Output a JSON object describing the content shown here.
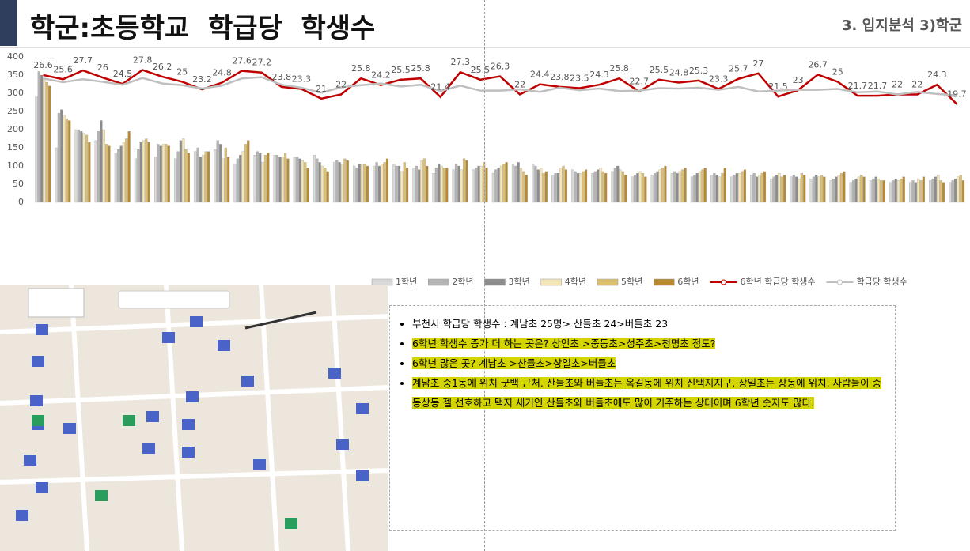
{
  "header": {
    "title": "학군:초등학교  학급당  학생수",
    "section": "3. 입지분석 3)학군"
  },
  "chart_data": {
    "type": "bar",
    "categories": [
      null,
      null,
      null,
      null,
      null,
      null,
      null,
      null,
      null,
      null,
      null,
      null,
      null,
      null,
      null,
      null,
      null,
      null,
      null,
      null,
      null,
      null,
      null,
      null,
      null,
      null,
      null,
      null,
      null,
      null,
      null,
      null,
      null,
      null,
      null,
      null,
      null,
      null,
      null,
      null,
      null,
      null,
      null,
      null,
      null,
      null,
      null
    ],
    "ylim": [
      0,
      400
    ],
    "yticks": [
      0,
      50,
      100,
      150,
      200,
      250,
      300,
      350,
      400
    ],
    "y2lim": [
      -3.6,
      30.9
    ],
    "series": [
      {
        "name": "1학년",
        "color": "#d9d9d9",
        "values": [
          290,
          150,
          200,
          170,
          135,
          120,
          125,
          120,
          140,
          145,
          105,
          130,
          130,
          125,
          130,
          110,
          100,
          100,
          105,
          95,
          80,
          90,
          90,
          80,
          105,
          105,
          75,
          90,
          80,
          85,
          70,
          75,
          80,
          70,
          75,
          70,
          75,
          65,
          70,
          65,
          60,
          55,
          60,
          55,
          55,
          60,
          55
        ]
      },
      {
        "name": "2학년",
        "color": "#b4b4b4",
        "values": [
          360,
          245,
          200,
          195,
          145,
          145,
          160,
          140,
          150,
          170,
          120,
          140,
          130,
          125,
          120,
          115,
          95,
          110,
          100,
          100,
          95,
          105,
          95,
          90,
          100,
          100,
          80,
          85,
          85,
          95,
          75,
          80,
          85,
          75,
          80,
          75,
          80,
          70,
          75,
          70,
          65,
          60,
          65,
          60,
          60,
          65,
          60
        ]
      },
      {
        "name": "3학년",
        "color": "#8c8c8c",
        "values": [
          350,
          255,
          195,
          225,
          155,
          165,
          155,
          170,
          125,
          160,
          130,
          135,
          125,
          120,
          110,
          110,
          105,
          100,
          100,
          90,
          105,
          100,
          100,
          95,
          110,
          90,
          80,
          80,
          90,
          100,
          80,
          85,
          80,
          80,
          75,
          80,
          70,
          75,
          70,
          75,
          70,
          65,
          70,
          65,
          55,
          70,
          65
        ]
      },
      {
        "name": "4학년",
        "color": "#f5e6b8",
        "values": [
          340,
          240,
          190,
          200,
          165,
          170,
          160,
          175,
          130,
          120,
          140,
          110,
          125,
          115,
          100,
          105,
          105,
          105,
          85,
          115,
          100,
          90,
          100,
          100,
          95,
          95,
          95,
          80,
          95,
          90,
          85,
          90,
          85,
          85,
          70,
          80,
          75,
          80,
          65,
          70,
          75,
          70,
          65,
          60,
          65,
          75,
          70
        ]
      },
      {
        "name": "5학년",
        "color": "#dcc070",
        "values": [
          330,
          230,
          185,
          160,
          175,
          175,
          160,
          145,
          140,
          150,
          160,
          130,
          135,
          110,
          95,
          120,
          105,
          110,
          110,
          120,
          95,
          120,
          110,
          105,
          85,
          80,
          100,
          85,
          85,
          85,
          80,
          95,
          90,
          90,
          80,
          85,
          80,
          70,
          80,
          75,
          80,
          75,
          60,
          65,
          60,
          60,
          75
        ]
      },
      {
        "name": "6학년",
        "color": "#b8892e",
        "values": [
          320,
          225,
          165,
          155,
          195,
          165,
          155,
          135,
          140,
          125,
          170,
          135,
          120,
          95,
          85,
          115,
          100,
          120,
          95,
          100,
          95,
          115,
          95,
          110,
          75,
          85,
          90,
          90,
          80,
          75,
          70,
          100,
          95,
          95,
          95,
          90,
          85,
          75,
          75,
          70,
          85,
          70,
          60,
          70,
          70,
          55,
          60
        ]
      },
      {
        "name": "6학년 학급당 학생수",
        "type": "line",
        "axis": "y2",
        "color": "#c00000",
        "values": [
          26.6,
          25.6,
          27.7,
          26,
          24.5,
          27.8,
          26.2,
          25,
          23.2,
          24.8,
          27.6,
          27.2,
          23.8,
          23.3,
          21,
          22,
          25.8,
          24.2,
          25.5,
          25.8,
          21.4,
          27.3,
          25.5,
          26.3,
          22,
          24.4,
          23.8,
          23.5,
          24.3,
          25.8,
          22.7,
          25.5,
          24.8,
          25.3,
          23.3,
          25.7,
          27,
          21.5,
          23,
          26.7,
          25,
          21.7,
          21.7,
          22,
          22,
          24.3,
          19.7
        ]
      },
      {
        "name": "학급당 학생수",
        "type": "line",
        "axis": "y2",
        "color": "#bfbfbf",
        "values": [
          25.8,
          24.9,
          25.6,
          25,
          24.3,
          25.9,
          24.6,
          24.2,
          23.4,
          24.1,
          25.8,
          26.1,
          24.3,
          23.6,
          22.4,
          23.7,
          24.2,
          24.6,
          23.9,
          24.3,
          22.8,
          24.1,
          22.9,
          22.9,
          23.2,
          22.6,
          23.6,
          23,
          23.4,
          22.8,
          22.9,
          23.5,
          23.4,
          23.6,
          23.1,
          23.8,
          22.7,
          22.9,
          23.1,
          23.1,
          23.3,
          22.5,
          22.7,
          22,
          22.6,
          22.1,
          21.8
        ]
      }
    ]
  },
  "notes": {
    "bullets": [
      "부천시 학급당 학생수 : 계남초 25명> 산들초 24>버들초 23",
      "6학년 학생수 증가 더 하는 곳은? 상인초 >중동초>성주초>청명초 정도?",
      "6학년 많은 곳? 계남초 >산들초>상일초>버들초",
      "계남초 중1동에 위치 굿백 근처. 산들초와 버들초는 옥길동에 위치 신택지지구, 상일초는 상동에 위치. 사람들이 중동상동 젤 선호하고 택지 새거인 산들초와 버들초에도 많이 거주하는 상태이며 6학년 숫자도 많다."
    ]
  }
}
